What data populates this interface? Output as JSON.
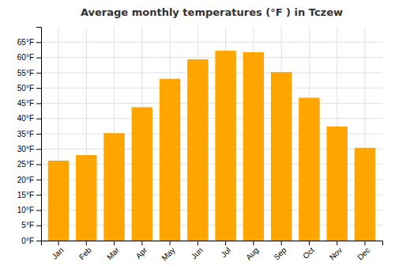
{
  "chart_data": {
    "type": "bar",
    "title": "Average monthly temperatures (°F ) in Tczew",
    "categories": [
      "Jan",
      "Feb",
      "Mar",
      "Apr",
      "May",
      "Jun",
      "Jul",
      "Aug",
      "Sep",
      "Oct",
      "Nov",
      "Dec"
    ],
    "values": [
      26.2,
      28.0,
      35.2,
      43.7,
      53.0,
      59.4,
      62.2,
      61.7,
      55.2,
      46.8,
      37.4,
      30.4
    ],
    "color": "#FFA500",
    "ylim": [
      0,
      70
    ],
    "yticks": [
      {
        "value": 0,
        "label": "0°F"
      },
      {
        "value": 5,
        "label": "5°F"
      },
      {
        "value": 10,
        "label": "10°F"
      },
      {
        "value": 15,
        "label": "15°F"
      },
      {
        "value": 20,
        "label": "20°F"
      },
      {
        "value": 25,
        "label": "25°F"
      },
      {
        "value": 30,
        "label": "30°F"
      },
      {
        "value": 35,
        "label": "35°F"
      },
      {
        "value": 40,
        "label": "40°F"
      },
      {
        "value": 45,
        "label": "45°F"
      },
      {
        "value": 50,
        "label": "50°F"
      },
      {
        "value": 55,
        "label": "55°F"
      },
      {
        "value": 60,
        "label": "60°F"
      },
      {
        "value": 65,
        "label": "65°F"
      }
    ],
    "grid": true
  }
}
